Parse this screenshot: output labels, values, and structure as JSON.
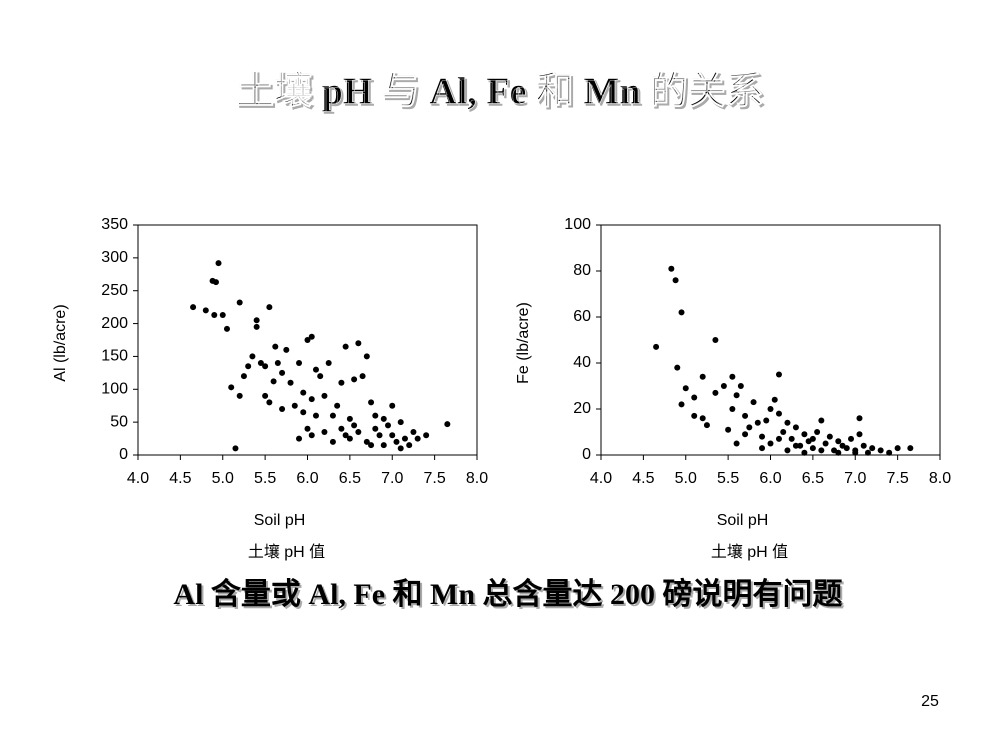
{
  "title": "土壤 pH  与 Al, Fe 和 Mn 的关系",
  "note": "Al 含量或 Al, Fe 和 Mn 总含量达 200 磅说明有问题",
  "page_number": "25",
  "chart_data": [
    {
      "type": "scatter",
      "xlabel": "Soil pH",
      "xlabel2": "土壤 pH 值",
      "ylabel": "Al (lb/acre)",
      "color": "#000000",
      "xlim": [
        4,
        8
      ],
      "ylim": [
        0,
        350
      ],
      "xticks": [
        {
          "value": 4,
          "label": "4.0"
        },
        4.5,
        {
          "value": 5,
          "label": "5.0"
        },
        5.5,
        {
          "value": 6,
          "label": "6.0"
        },
        6.5,
        {
          "value": 7,
          "label": "7.0"
        },
        7.5,
        {
          "value": 8,
          "label": "8.0"
        }
      ],
      "yticks": [
        0,
        50,
        100,
        150,
        200,
        250,
        300,
        350
      ],
      "x": [
        4.65,
        4.8,
        4.88,
        4.92,
        4.95,
        4.9,
        5.0,
        5.05,
        5.1,
        5.15,
        5.2,
        5.2,
        5.25,
        5.3,
        5.35,
        5.4,
        5.4,
        5.45,
        5.5,
        5.55,
        5.5,
        5.55,
        5.6,
        5.62,
        5.65,
        5.7,
        5.75,
        5.8,
        5.85,
        5.9,
        5.95,
        6.0,
        6.05,
        6.05,
        6.1,
        6.15,
        6.2,
        6.25,
        6.3,
        6.35,
        6.4,
        6.45,
        6.5,
        6.55,
        6.6,
        6.65,
        6.7,
        6.75,
        6.8,
        6.85,
        6.9,
        6.95,
        7.0,
        7.05,
        7.1,
        7.15,
        7.2,
        7.3,
        7.4,
        7.65,
        5.9,
        6.0,
        6.2,
        6.3,
        6.4,
        6.5,
        6.6,
        6.7,
        6.8,
        6.9,
        7.0,
        7.1,
        6.55,
        6.1,
        5.7,
        5.95,
        6.45,
        6.75,
        7.25,
        6.05
      ],
      "y": [
        225,
        220,
        265,
        263,
        292,
        213,
        213,
        192,
        103,
        10,
        232,
        90,
        120,
        135,
        150,
        205,
        195,
        140,
        135,
        225,
        90,
        80,
        112,
        165,
        140,
        125,
        160,
        110,
        75,
        140,
        95,
        175,
        180,
        85,
        130,
        120,
        90,
        140,
        60,
        75,
        110,
        165,
        55,
        115,
        170,
        120,
        150,
        80,
        60,
        30,
        55,
        45,
        75,
        20,
        50,
        25,
        15,
        25,
        30,
        47,
        25,
        40,
        35,
        20,
        40,
        25,
        35,
        20,
        40,
        15,
        30,
        10,
        45,
        60,
        70,
        65,
        30,
        15,
        35,
        30
      ]
    },
    {
      "type": "scatter",
      "xlabel": "Soil pH",
      "xlabel2": "土壤 pH 值",
      "ylabel": "Fe (lb/acre)",
      "color": "#000000",
      "xlim": [
        4,
        8
      ],
      "ylim": [
        0,
        100
      ],
      "xticks": [
        {
          "value": 4,
          "label": "4.0"
        },
        4.5,
        {
          "value": 5,
          "label": "5.0"
        },
        5.5,
        {
          "value": 6,
          "label": "6.0"
        },
        6.5,
        {
          "value": 7,
          "label": "7.0"
        },
        7.5,
        {
          "value": 8,
          "label": "8.0"
        }
      ],
      "yticks": [
        0,
        20,
        40,
        60,
        80,
        100
      ],
      "x": [
        4.65,
        4.83,
        4.88,
        4.95,
        4.9,
        4.95,
        5.0,
        5.1,
        5.1,
        5.2,
        5.2,
        5.25,
        5.35,
        5.35,
        5.45,
        5.5,
        5.55,
        5.55,
        5.6,
        5.6,
        5.65,
        5.7,
        5.75,
        5.8,
        5.85,
        5.9,
        5.95,
        6.0,
        6.05,
        6.1,
        6.1,
        6.15,
        6.2,
        6.25,
        6.3,
        6.35,
        6.4,
        6.45,
        6.5,
        6.55,
        6.6,
        6.65,
        6.7,
        6.75,
        6.8,
        6.85,
        6.9,
        6.95,
        7.0,
        7.05,
        7.05,
        7.1,
        7.15,
        7.2,
        7.3,
        7.4,
        7.5,
        7.65,
        5.9,
        6.0,
        6.2,
        6.4,
        6.6,
        6.8,
        7.0,
        6.3,
        6.5,
        5.7,
        6.1
      ],
      "y": [
        47,
        81,
        76,
        62,
        38,
        22,
        29,
        17,
        25,
        34,
        16,
        13,
        50,
        27,
        30,
        11,
        34,
        20,
        5,
        26,
        30,
        17,
        12,
        23,
        14,
        8,
        15,
        20,
        24,
        35,
        18,
        10,
        14,
        7,
        12,
        4,
        9,
        6,
        3,
        10,
        15,
        5,
        8,
        2,
        6,
        4,
        3,
        7,
        2,
        16,
        9,
        4,
        1,
        3,
        2,
        1,
        3,
        3,
        3,
        5,
        2,
        1,
        2,
        1,
        1,
        4,
        7,
        9,
        7
      ]
    }
  ]
}
